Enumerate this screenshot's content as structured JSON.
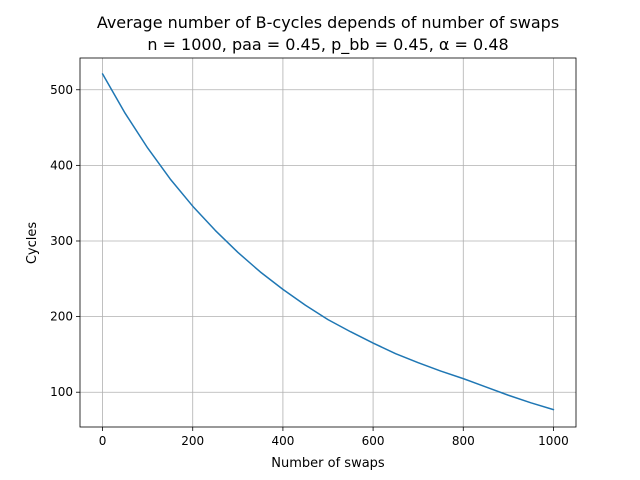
{
  "chart_data": {
    "type": "line",
    "title": "Average number of B-cycles depends of number of swaps",
    "subtitle": "n = 1000, paa = 0.45, p_bb = 0.45, α = 0.48",
    "xlabel": "Number of swaps",
    "ylabel": "Cycles",
    "xlim": [
      -50,
      1050
    ],
    "ylim": [
      54,
      542
    ],
    "xticks": [
      0,
      200,
      400,
      600,
      800,
      1000
    ],
    "yticks": [
      100,
      200,
      300,
      400,
      500
    ],
    "grid": true,
    "series": [
      {
        "color": "#1f77b4",
        "x": [
          0,
          50,
          100,
          150,
          200,
          250,
          300,
          350,
          400,
          450,
          500,
          550,
          600,
          650,
          700,
          750,
          800,
          850,
          900,
          950,
          1000
        ],
        "y": [
          521,
          469,
          423,
          382,
          346,
          314,
          285,
          259,
          236,
          215,
          196,
          180,
          165,
          151,
          139,
          128,
          118,
          107,
          96,
          86,
          77
        ]
      }
    ]
  }
}
